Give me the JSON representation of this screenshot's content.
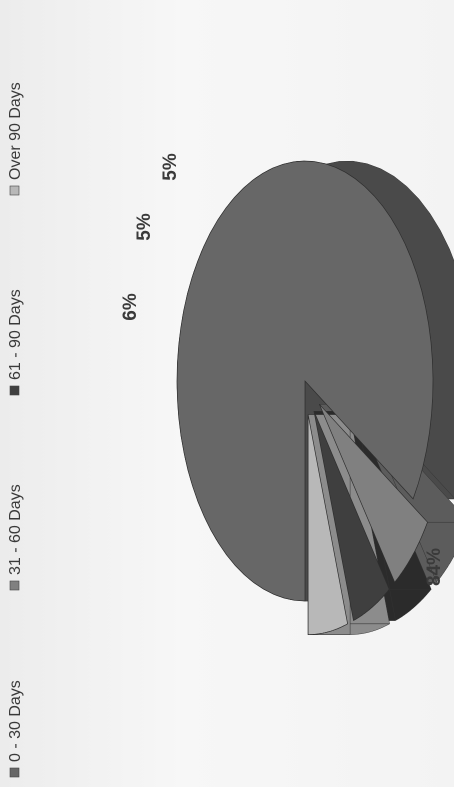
{
  "chart_data": {
    "type": "pie",
    "title": "",
    "legend_placement": "top",
    "categories": [
      "0 - 30 Days",
      "31 - 60 Days",
      "61 - 90 Days",
      "Over 90 Days"
    ],
    "values": [
      84,
      6,
      5,
      5
    ],
    "labels": [
      "84%",
      "6%",
      "5%",
      "5%"
    ],
    "series": [
      {
        "name": "0 - 30 Days",
        "value": 84,
        "label": "84%",
        "color": "#676767",
        "side_color": "#4a4a4a"
      },
      {
        "name": "31 - 60 Days",
        "value": 6,
        "label": "6%",
        "color": "#808080",
        "side_color": "#5c5c5c"
      },
      {
        "name": "61 - 90 Days",
        "value": 5,
        "label": "5%",
        "color": "#3f3f3f",
        "side_color": "#2b2b2b"
      },
      {
        "name": "Over 90 Days",
        "value": 5,
        "label": "5%",
        "color": "#b8b8b8",
        "side_color": "#8c8c8c"
      }
    ],
    "exploded": [
      false,
      true,
      true,
      true
    ],
    "three_d": true
  }
}
